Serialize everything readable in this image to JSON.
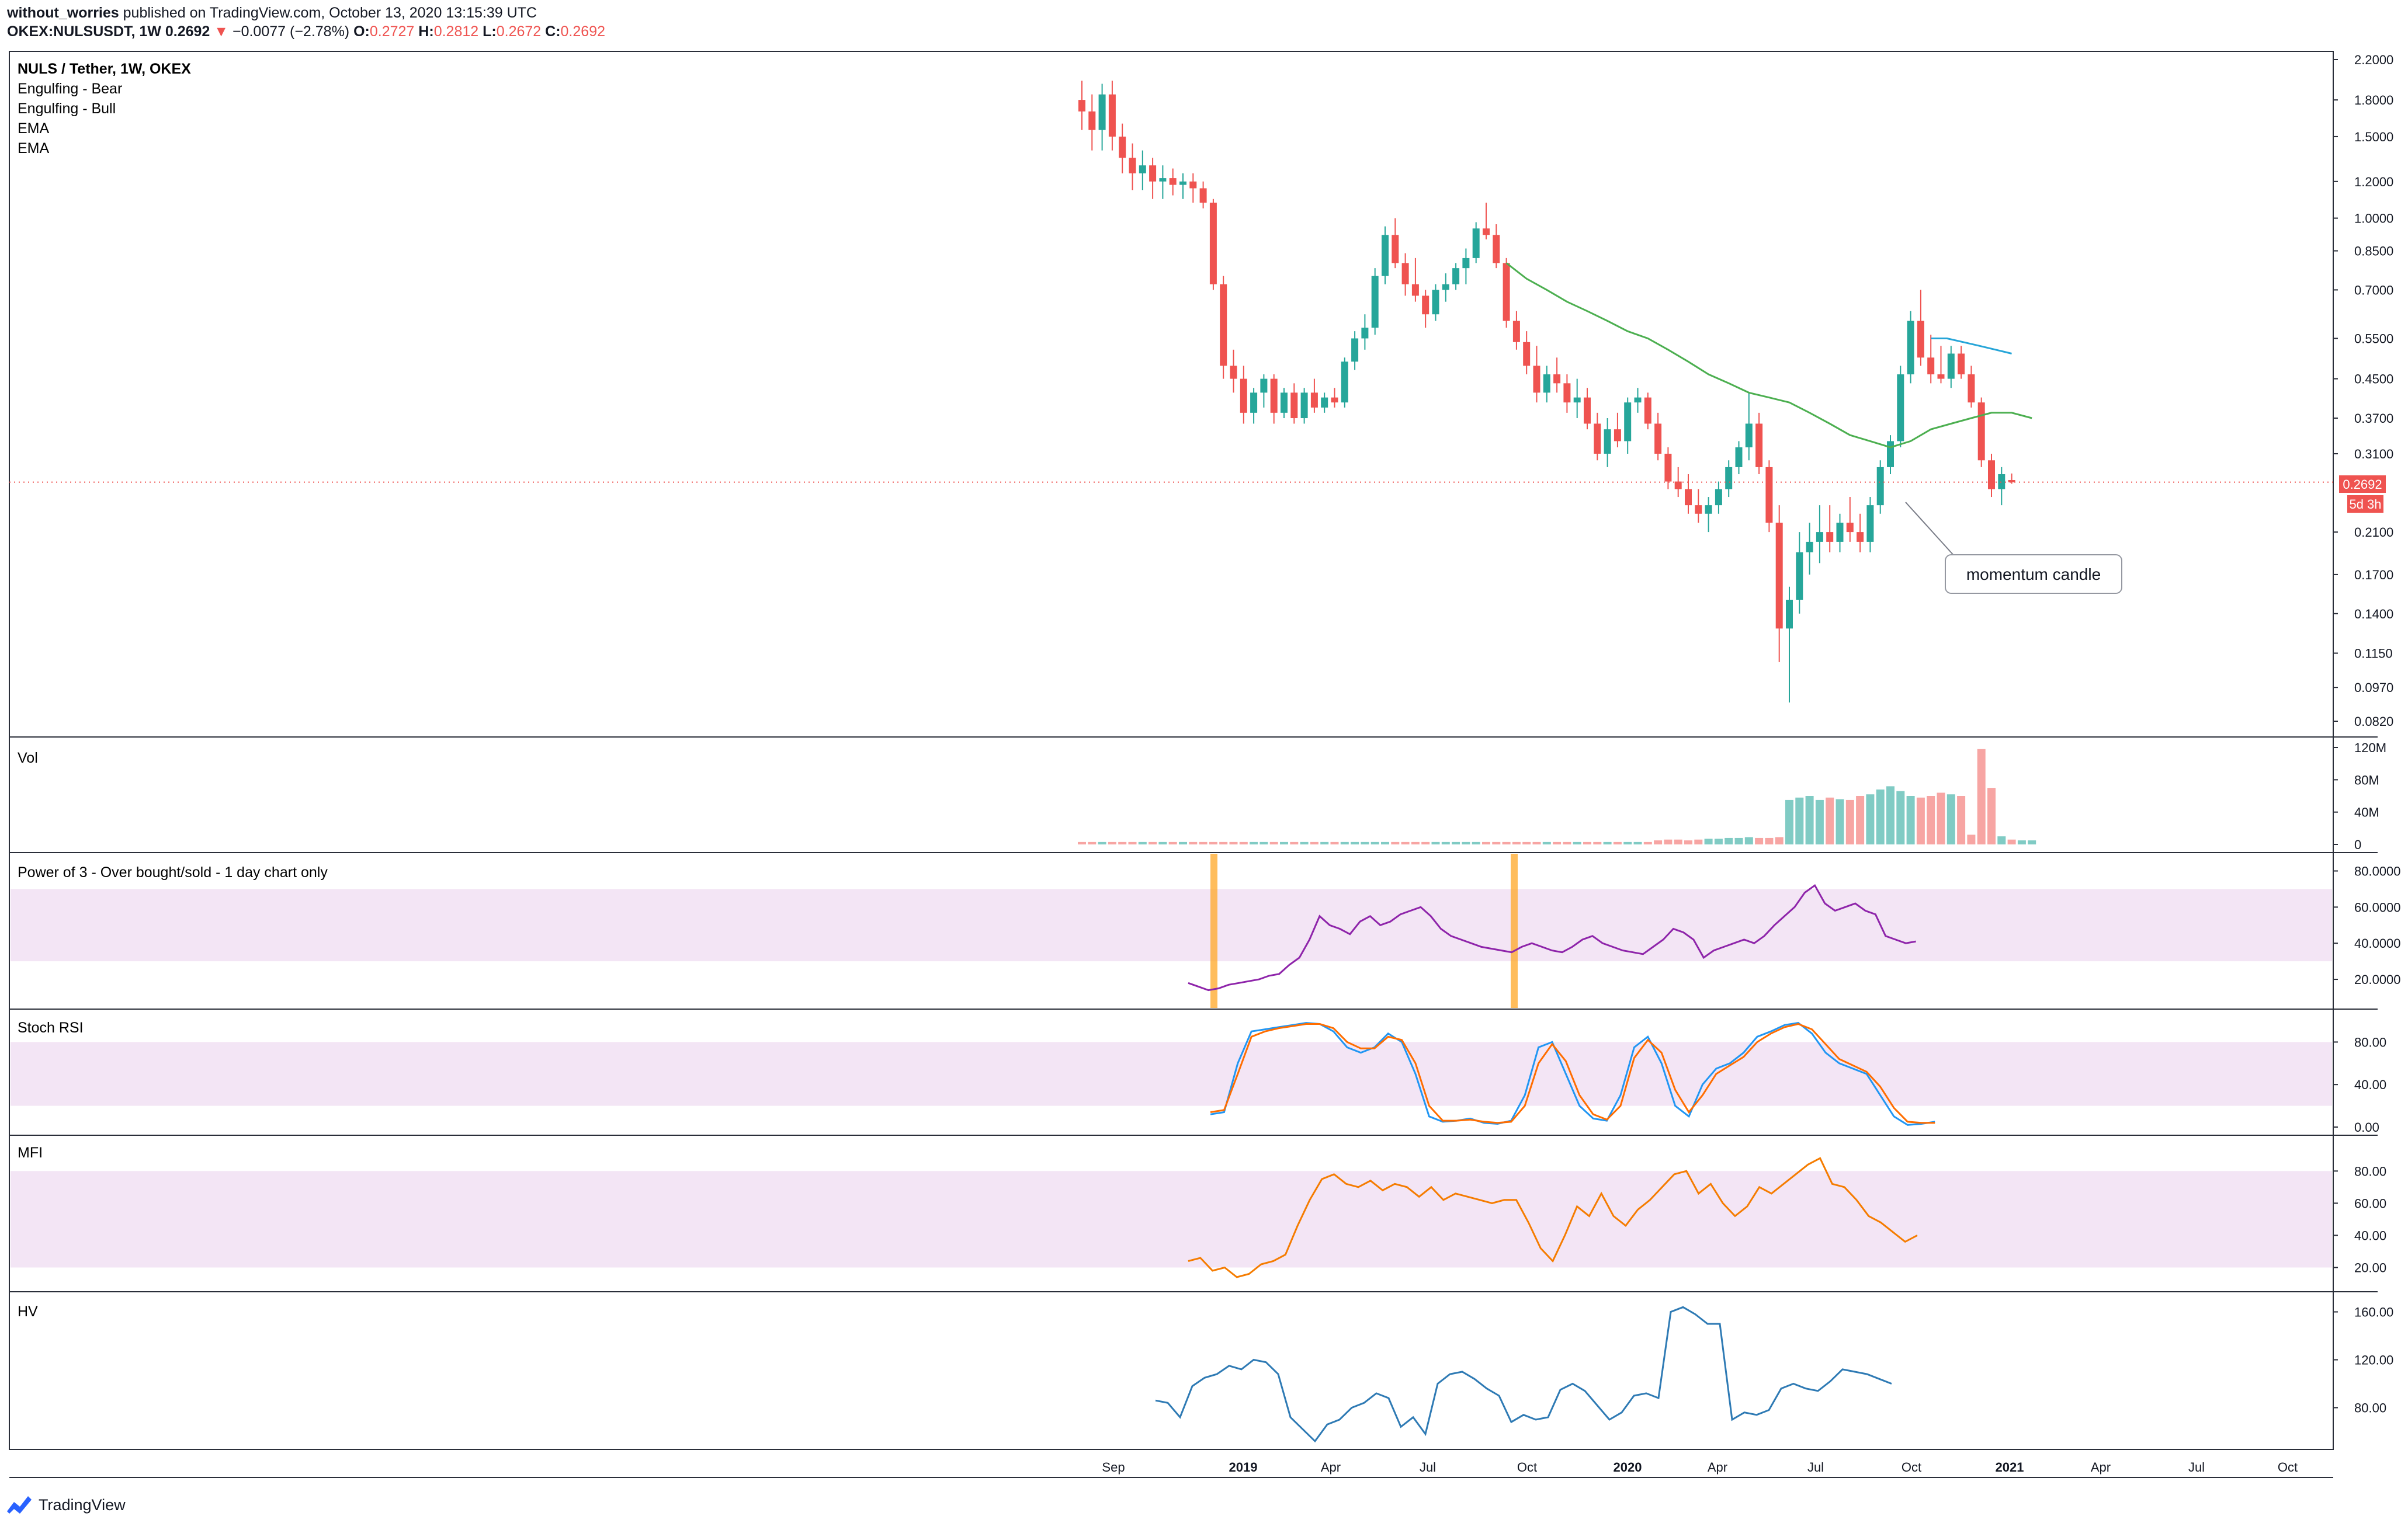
{
  "header": {
    "author": "without_worries",
    "published_text": "published on TradingView.com, October 13, 2020 13:15:39 UTC",
    "symbol": "OKEX:NULSUSDT, 1W",
    "last": "0.2692",
    "change": "−0.0077 (−2.78%)",
    "o_label": "O:",
    "o_value": "0.2727",
    "h_label": "H:",
    "h_value": "0.2812",
    "l_label": "L:",
    "l_value": "0.2672",
    "c_label": "C:",
    "c_value": "0.2692"
  },
  "legend": {
    "title": "NULS / Tether, 1W, OKEX",
    "items": [
      "Engulfing - Bear",
      "Engulfing - Bull",
      "EMA",
      "EMA"
    ]
  },
  "panes": {
    "vol": "Vol",
    "power3": "Power of 3 - Over bought/sold - 1 day chart only",
    "stoch": "Stoch RSI",
    "mfi": "MFI",
    "hv": "HV"
  },
  "price_axis": [
    "2.2000",
    "1.8000",
    "1.5000",
    "1.2000",
    "1.0000",
    "0.8500",
    "0.7000",
    "0.5500",
    "0.4500",
    "0.3700",
    "0.3100",
    "0.2100",
    "0.1700",
    "0.1400",
    "0.1150",
    "0.0970",
    "0.0820"
  ],
  "price_tag": "0.2692",
  "countdown_tag": "5d 3h",
  "annotation": "momentum candle",
  "vol_axis": [
    "120M",
    "80M",
    "40M",
    "0"
  ],
  "power3_axis": [
    "80.0000",
    "60.0000",
    "40.0000",
    "20.0000"
  ],
  "stoch_axis": [
    "80.00",
    "40.00",
    "0.00"
  ],
  "mfi_axis": [
    "80.00",
    "60.00",
    "40.00",
    "20.00"
  ],
  "hv_axis": [
    "160.00",
    "120.00",
    "80.00"
  ],
  "time_axis": [
    "Sep",
    "2019",
    "Apr",
    "Jul",
    "Oct",
    "2020",
    "Apr",
    "Jul",
    "Oct",
    "2021",
    "Apr",
    "Jul",
    "Oct"
  ],
  "footer": {
    "brand": "TradingView"
  },
  "colors": {
    "up": "#26a69a",
    "down": "#ef5350",
    "ema_green": "#4caf50",
    "ema_blue": "#26a5d8",
    "power3": "#8e24aa",
    "stoch_k": "#2196f3",
    "stoch_d": "#ff6d00",
    "mfi": "#f57c00",
    "hv": "#2e7ab4",
    "band": "#f3e5f5",
    "highlight": "#ffa726"
  },
  "chart_data": {
    "type": "candlestick",
    "timeframe": "1W",
    "scale": "log",
    "candles": [
      [
        1.8,
        1.98,
        1.55,
        1.7
      ],
      [
        1.7,
        1.85,
        1.4,
        1.55
      ],
      [
        1.55,
        1.95,
        1.4,
        1.85
      ],
      [
        1.85,
        1.98,
        1.4,
        1.5
      ],
      [
        1.5,
        1.6,
        1.25,
        1.35
      ],
      [
        1.35,
        1.45,
        1.15,
        1.25
      ],
      [
        1.25,
        1.4,
        1.15,
        1.3
      ],
      [
        1.3,
        1.35,
        1.1,
        1.2
      ],
      [
        1.2,
        1.3,
        1.1,
        1.22
      ],
      [
        1.22,
        1.28,
        1.12,
        1.18
      ],
      [
        1.18,
        1.25,
        1.1,
        1.2
      ],
      [
        1.2,
        1.25,
        1.08,
        1.16
      ],
      [
        1.16,
        1.2,
        1.05,
        1.08
      ],
      [
        1.08,
        1.1,
        0.7,
        0.72
      ],
      [
        0.72,
        0.75,
        0.45,
        0.48
      ],
      [
        0.48,
        0.52,
        0.42,
        0.45
      ],
      [
        0.45,
        0.48,
        0.36,
        0.38
      ],
      [
        0.38,
        0.43,
        0.36,
        0.42
      ],
      [
        0.42,
        0.46,
        0.39,
        0.45
      ],
      [
        0.45,
        0.46,
        0.36,
        0.38
      ],
      [
        0.38,
        0.43,
        0.37,
        0.42
      ],
      [
        0.42,
        0.44,
        0.36,
        0.37
      ],
      [
        0.37,
        0.43,
        0.36,
        0.42
      ],
      [
        0.42,
        0.45,
        0.38,
        0.39
      ],
      [
        0.39,
        0.42,
        0.38,
        0.41
      ],
      [
        0.41,
        0.43,
        0.39,
        0.4
      ],
      [
        0.4,
        0.5,
        0.39,
        0.49
      ],
      [
        0.49,
        0.57,
        0.47,
        0.55
      ],
      [
        0.55,
        0.62,
        0.52,
        0.58
      ],
      [
        0.58,
        0.78,
        0.56,
        0.75
      ],
      [
        0.75,
        0.96,
        0.72,
        0.92
      ],
      [
        0.92,
        1.0,
        0.78,
        0.8
      ],
      [
        0.8,
        0.84,
        0.68,
        0.72
      ],
      [
        0.72,
        0.82,
        0.66,
        0.68
      ],
      [
        0.68,
        0.7,
        0.58,
        0.62
      ],
      [
        0.62,
        0.72,
        0.6,
        0.7
      ],
      [
        0.7,
        0.76,
        0.66,
        0.72
      ],
      [
        0.72,
        0.8,
        0.7,
        0.78
      ],
      [
        0.78,
        0.86,
        0.72,
        0.82
      ],
      [
        0.82,
        0.98,
        0.8,
        0.95
      ],
      [
        0.95,
        1.08,
        0.9,
        0.92
      ],
      [
        0.92,
        0.97,
        0.78,
        0.8
      ],
      [
        0.8,
        0.82,
        0.58,
        0.6
      ],
      [
        0.6,
        0.63,
        0.52,
        0.54
      ],
      [
        0.54,
        0.57,
        0.46,
        0.48
      ],
      [
        0.48,
        0.53,
        0.4,
        0.42
      ],
      [
        0.42,
        0.48,
        0.4,
        0.46
      ],
      [
        0.46,
        0.5,
        0.42,
        0.44
      ],
      [
        0.44,
        0.46,
        0.38,
        0.4
      ],
      [
        0.4,
        0.45,
        0.37,
        0.41
      ],
      [
        0.41,
        0.43,
        0.35,
        0.36
      ],
      [
        0.36,
        0.38,
        0.3,
        0.31
      ],
      [
        0.31,
        0.37,
        0.29,
        0.35
      ],
      [
        0.35,
        0.38,
        0.32,
        0.33
      ],
      [
        0.33,
        0.41,
        0.31,
        0.4
      ],
      [
        0.4,
        0.43,
        0.38,
        0.41
      ],
      [
        0.41,
        0.42,
        0.35,
        0.36
      ],
      [
        0.36,
        0.38,
        0.3,
        0.31
      ],
      [
        0.31,
        0.32,
        0.26,
        0.27
      ],
      [
        0.27,
        0.29,
        0.25,
        0.26
      ],
      [
        0.26,
        0.28,
        0.23,
        0.24
      ],
      [
        0.24,
        0.26,
        0.22,
        0.23
      ],
      [
        0.23,
        0.25,
        0.21,
        0.24
      ],
      [
        0.24,
        0.27,
        0.23,
        0.26
      ],
      [
        0.26,
        0.3,
        0.25,
        0.29
      ],
      [
        0.29,
        0.33,
        0.28,
        0.32
      ],
      [
        0.32,
        0.42,
        0.3,
        0.36
      ],
      [
        0.36,
        0.38,
        0.28,
        0.29
      ],
      [
        0.29,
        0.3,
        0.21,
        0.22
      ],
      [
        0.22,
        0.24,
        0.11,
        0.13
      ],
      [
        0.13,
        0.16,
        0.09,
        0.15
      ],
      [
        0.15,
        0.21,
        0.14,
        0.19
      ],
      [
        0.19,
        0.22,
        0.17,
        0.2
      ],
      [
        0.2,
        0.24,
        0.18,
        0.21
      ],
      [
        0.21,
        0.24,
        0.19,
        0.2
      ],
      [
        0.2,
        0.23,
        0.19,
        0.22
      ],
      [
        0.22,
        0.25,
        0.2,
        0.21
      ],
      [
        0.21,
        0.23,
        0.19,
        0.2
      ],
      [
        0.2,
        0.25,
        0.19,
        0.24
      ],
      [
        0.24,
        0.3,
        0.23,
        0.29
      ],
      [
        0.29,
        0.34,
        0.28,
        0.33
      ],
      [
        0.33,
        0.48,
        0.32,
        0.46
      ],
      [
        0.46,
        0.63,
        0.44,
        0.6
      ],
      [
        0.6,
        0.7,
        0.48,
        0.5
      ],
      [
        0.5,
        0.56,
        0.44,
        0.46
      ],
      [
        0.46,
        0.53,
        0.44,
        0.45
      ],
      [
        0.45,
        0.53,
        0.43,
        0.51
      ],
      [
        0.51,
        0.53,
        0.45,
        0.46
      ],
      [
        0.46,
        0.48,
        0.39,
        0.4
      ],
      [
        0.4,
        0.41,
        0.29,
        0.3
      ],
      [
        0.3,
        0.31,
        0.25,
        0.26
      ],
      [
        0.26,
        0.29,
        0.24,
        0.28
      ],
      [
        0.272,
        0.281,
        0.267,
        0.269
      ]
    ],
    "ema_green": [
      0.8,
      0.74,
      0.7,
      0.66,
      0.63,
      0.6,
      0.57,
      0.55,
      0.52,
      0.49,
      0.46,
      0.44,
      0.42,
      0.41,
      0.4,
      0.38,
      0.36,
      0.34,
      0.33,
      0.32,
      0.33,
      0.35,
      0.36,
      0.37,
      0.38,
      0.38,
      0.37
    ],
    "ema_blue": [
      0.55,
      0.55,
      0.54,
      0.53,
      0.52,
      0.51
    ],
    "volume_millions": [
      3,
      3,
      3,
      3,
      3,
      3,
      3,
      3,
      3,
      3,
      3,
      3,
      3,
      3,
      3,
      3,
      3,
      3,
      3,
      3,
      3,
      3,
      3,
      3,
      3,
      3,
      3,
      3,
      3,
      3,
      3,
      3,
      3,
      3,
      3,
      3,
      3,
      3,
      3,
      3,
      3,
      3,
      3,
      3,
      3,
      3,
      3,
      3,
      3,
      3,
      3,
      3,
      3,
      3,
      3,
      3,
      3,
      5,
      6,
      6,
      5,
      6,
      7,
      7,
      8,
      8,
      9,
      8,
      8,
      9,
      55,
      58,
      60,
      55,
      58,
      56,
      55,
      60,
      62,
      68,
      72,
      66,
      60,
      58,
      60,
      64,
      62,
      60,
      12,
      118,
      70,
      10,
      6,
      5,
      5
    ],
    "power3": [
      18,
      16,
      14,
      15,
      17,
      18,
      19,
      20,
      22,
      23,
      28,
      32,
      42,
      55,
      50,
      48,
      45,
      52,
      55,
      50,
      52,
      56,
      58,
      60,
      55,
      48,
      44,
      42,
      40,
      38,
      37,
      36,
      35,
      38,
      40,
      38,
      36,
      35,
      38,
      42,
      44,
      40,
      38,
      36,
      35,
      34,
      38,
      42,
      48,
      46,
      42,
      32,
      36,
      38,
      40,
      42,
      40,
      44,
      50,
      55,
      60,
      68,
      72,
      62,
      58,
      60,
      62,
      58,
      56,
      44,
      42,
      40,
      41
    ],
    "stoch_k": [
      12,
      14,
      60,
      90,
      92,
      94,
      96,
      98,
      97,
      90,
      75,
      70,
      75,
      88,
      80,
      50,
      10,
      5,
      6,
      8,
      4,
      3,
      6,
      30,
      75,
      80,
      50,
      20,
      8,
      6,
      30,
      75,
      85,
      60,
      20,
      10,
      40,
      55,
      60,
      70,
      85,
      90,
      96,
      98,
      88,
      70,
      60,
      55,
      50,
      30,
      10,
      2,
      3,
      5
    ],
    "stoch_d": [
      14,
      16,
      50,
      85,
      90,
      93,
      95,
      97,
      97,
      93,
      80,
      74,
      74,
      85,
      82,
      60,
      20,
      6,
      6,
      7,
      5,
      4,
      5,
      20,
      60,
      78,
      62,
      30,
      12,
      7,
      20,
      65,
      82,
      70,
      35,
      14,
      30,
      50,
      58,
      66,
      80,
      88,
      94,
      97,
      92,
      78,
      64,
      58,
      52,
      38,
      18,
      5,
      4,
      4
    ],
    "mfi": [
      24,
      26,
      18,
      20,
      14,
      16,
      22,
      24,
      28,
      46,
      62,
      75,
      78,
      72,
      70,
      74,
      68,
      72,
      70,
      64,
      70,
      62,
      66,
      64,
      62,
      60,
      62,
      62,
      48,
      32,
      24,
      40,
      58,
      52,
      66,
      52,
      46,
      56,
      62,
      70,
      78,
      80,
      66,
      72,
      60,
      52,
      58,
      70,
      66,
      72,
      78,
      84,
      88,
      72,
      70,
      62,
      52,
      48,
      42,
      36,
      40
    ],
    "hv": [
      86,
      84,
      72,
      98,
      105,
      108,
      115,
      112,
      120,
      118,
      108,
      72,
      62,
      52,
      66,
      70,
      80,
      84,
      92,
      88,
      64,
      72,
      58,
      100,
      108,
      110,
      104,
      96,
      90,
      68,
      74,
      70,
      72,
      95,
      100,
      94,
      82,
      70,
      76,
      90,
      92,
      88,
      160,
      164,
      158,
      150,
      150,
      70,
      76,
      74,
      78,
      96,
      100,
      96,
      94,
      102,
      112,
      110,
      108,
      104,
      100
    ]
  }
}
